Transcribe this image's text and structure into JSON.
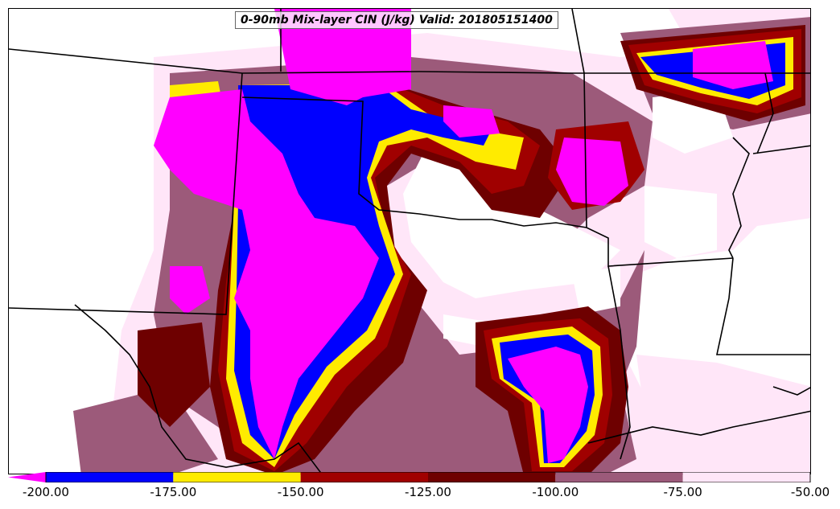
{
  "title": "0-90mb Mix-layer CIN (J/kg) Valid: 201805151400",
  "colorbar": {
    "ticks": [
      "-200.00",
      "-175.00",
      "-150.00",
      "-125.00",
      "-100.00",
      "-75.00",
      "-50.00"
    ],
    "bins": [
      {
        "from": -200,
        "to": -175,
        "color": "#0000ff"
      },
      {
        "from": -175,
        "to": -150,
        "color": "#ffeb00"
      },
      {
        "from": -150,
        "to": -125,
        "color": "#a00000"
      },
      {
        "from": -125,
        "to": -100,
        "color": "#6e0000"
      },
      {
        "from": -100,
        "to": -75,
        "color": "#9c5a7a"
      },
      {
        "from": -75,
        "to": -50,
        "color": "#ffe6f8"
      }
    ],
    "extend_color": "#ff00ff"
  }
}
